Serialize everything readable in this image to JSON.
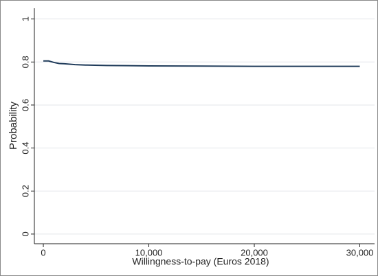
{
  "chart_data": {
    "type": "line",
    "x_label": "Willingness-to-pay (Euros 2018)",
    "y_label": "Probability",
    "x": [
      0,
      500,
      1000,
      1500,
      2000,
      3000,
      4000,
      6000,
      8000,
      10000,
      15000,
      20000,
      30000
    ],
    "series": [
      {
        "color": "#1f3b5a",
        "values": [
          0.805,
          0.805,
          0.798,
          0.793,
          0.792,
          0.788,
          0.786,
          0.784,
          0.783,
          0.782,
          0.781,
          0.78,
          0.78
        ]
      }
    ],
    "xlim": [
      -850,
      31400
    ],
    "xticks": [
      0,
      {
        "value": 10000,
        "label": "10,000"
      },
      {
        "value": 20000,
        "label": "20,000"
      },
      {
        "value": 30000,
        "label": "30,000"
      }
    ],
    "ylim": [
      -0.045,
      1.05
    ],
    "yticks": [
      0,
      0.2,
      0.4,
      0.6,
      0.8,
      1
    ],
    "grid": true
  }
}
